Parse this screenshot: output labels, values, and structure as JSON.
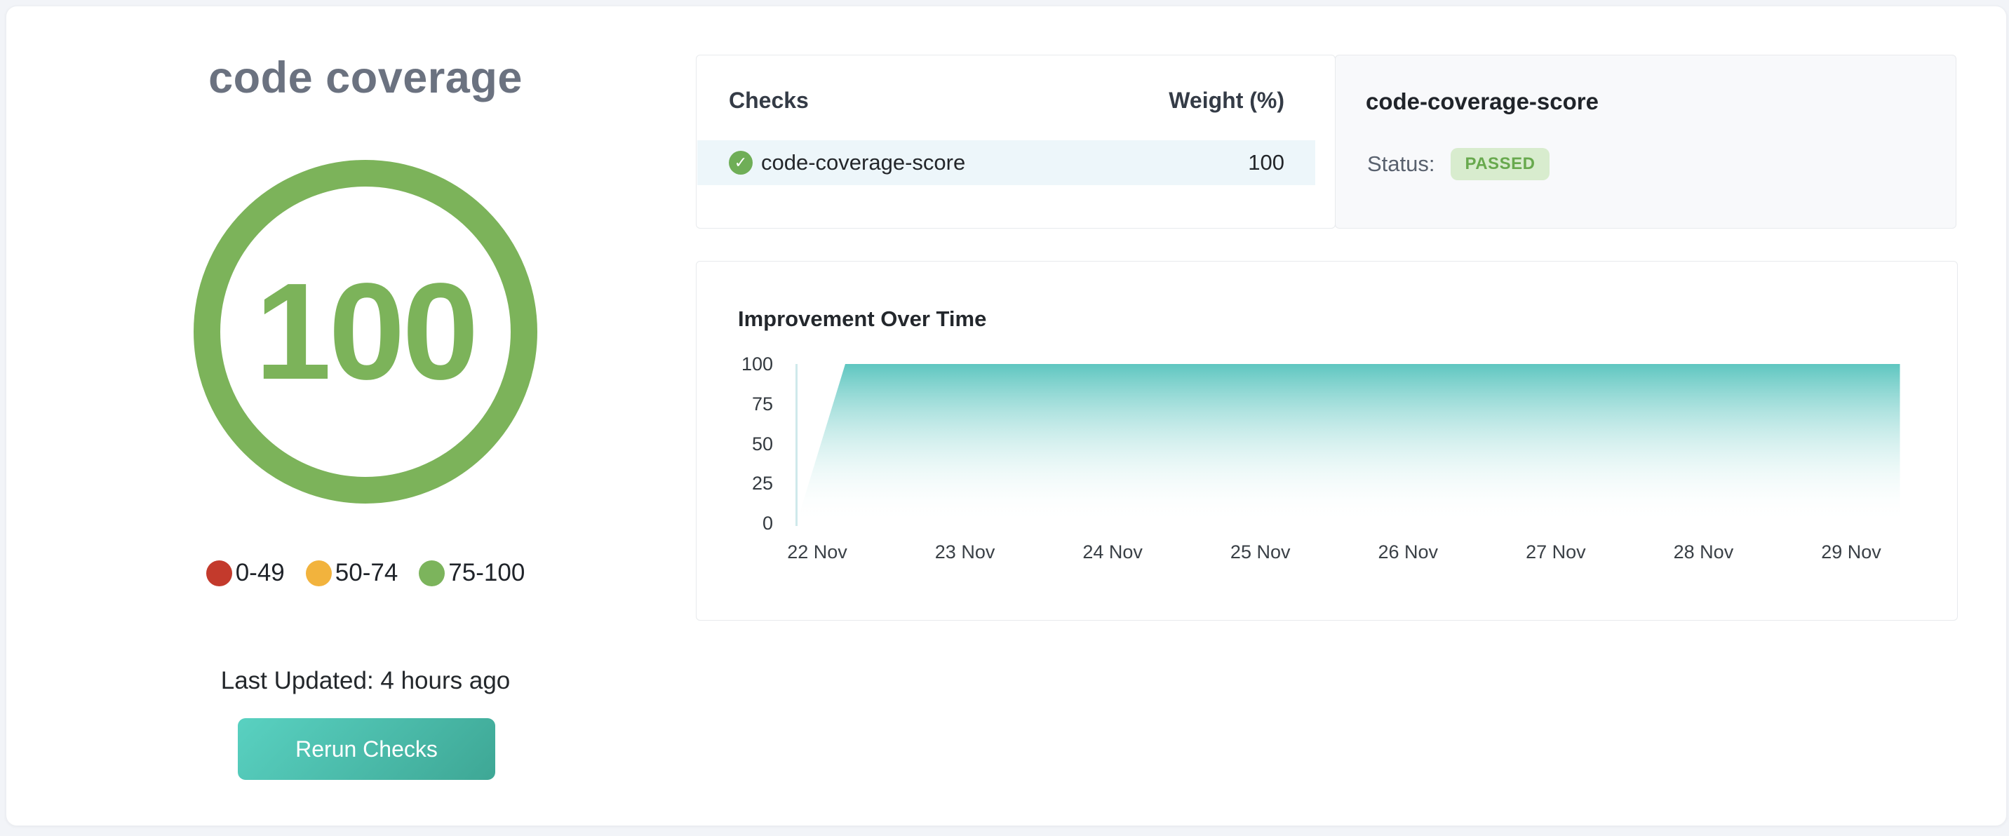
{
  "page": {
    "background": "#f2f4f8"
  },
  "score_panel": {
    "title": "code coverage",
    "score": "100",
    "gauge_color": "#7cb35a",
    "legend": [
      {
        "label": "0-49",
        "color": "#c33a2c"
      },
      {
        "label": "50-74",
        "color": "#f2b33d"
      },
      {
        "label": "75-100",
        "color": "#7cb45c"
      }
    ],
    "last_updated": "Last Updated: 4 hours ago",
    "rerun_button_label": "Rerun Checks",
    "button_gradient": [
      "#59d1c1",
      "#3ea795"
    ]
  },
  "checks_table": {
    "header_checks": "Checks",
    "header_weight": "Weight (%)",
    "rows": [
      {
        "name": "code-coverage-score",
        "weight": "100",
        "status_icon": "check-circle-icon",
        "icon_color": "#6fae57",
        "icon_glyph": "✓",
        "row_highlight": "#edf6fa"
      }
    ]
  },
  "status_panel": {
    "title": "code-coverage-score",
    "status_label": "Status:",
    "status_value": "PASSED",
    "badge_bg": "#d8ecce",
    "badge_color": "#68a94e"
  },
  "chart_data": {
    "type": "area",
    "title": "Improvement Over Time",
    "xlabel": "",
    "ylabel": "",
    "x_tick_labels": [
      "22 Nov",
      "23 Nov",
      "24 Nov",
      "25 Nov",
      "26 Nov",
      "27 Nov",
      "28 Nov",
      "29 Nov"
    ],
    "y_tick_labels": [
      "100",
      "75",
      "50",
      "25",
      "0"
    ],
    "ylim": [
      0,
      100
    ],
    "grid": false,
    "legend_position": "none",
    "series": [
      {
        "name": "code-coverage-score",
        "points_days": [
          [
            -0.14,
            0
          ],
          [
            0.19,
            100
          ],
          [
            7.33,
            100
          ]
        ],
        "note": "x in days relative to 22 Nov tick; score rises from 0 to 100 just after start, then flat at 100 through 29 Nov"
      }
    ],
    "area_gradient_top": "#5ec6c0",
    "area_gradient_bottom": "#ffffff",
    "axis_color": "#cfe9eb"
  }
}
